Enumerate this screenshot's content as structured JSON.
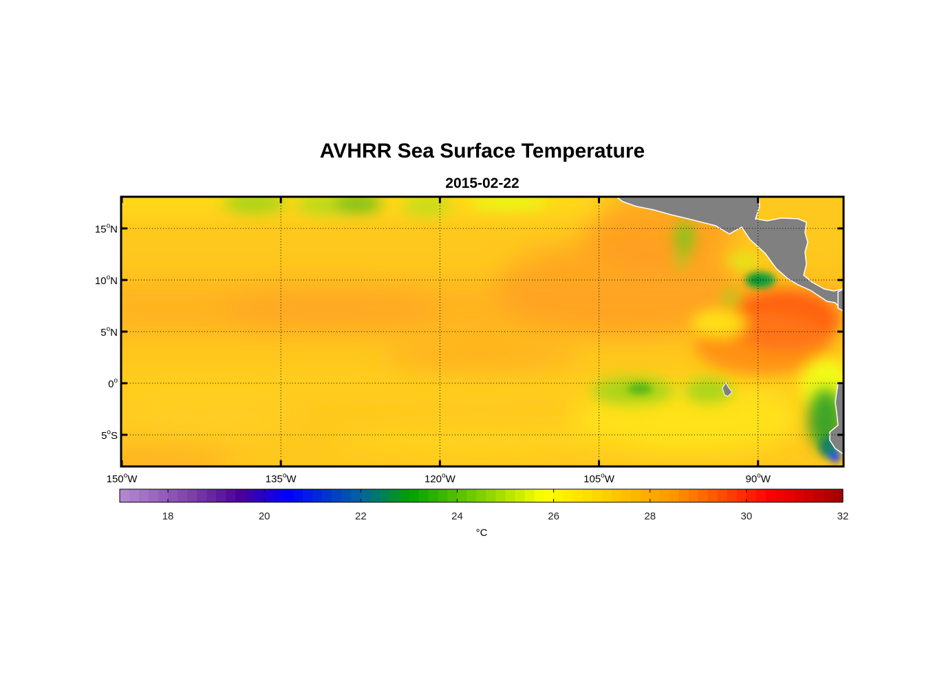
{
  "title": "AVHRR Sea Surface Temperature",
  "subtitle": "2015-02-22",
  "map": {
    "region": "Eastern tropical Pacific",
    "lon_range": [
      -150,
      -82
    ],
    "lat_range": [
      -8,
      18
    ],
    "lat_ticks": [
      {
        "value": 15,
        "num": "15",
        "hemi": "N"
      },
      {
        "value": 10,
        "num": "10",
        "hemi": "N"
      },
      {
        "value": 5,
        "num": "5",
        "hemi": "N"
      },
      {
        "value": 0,
        "num": "0",
        "hemi": ""
      },
      {
        "value": -5,
        "num": "5",
        "hemi": "S"
      }
    ],
    "lon_ticks": [
      {
        "value": -150,
        "num": "150",
        "hemi": "W"
      },
      {
        "value": -135,
        "num": "135",
        "hemi": "W"
      },
      {
        "value": -120,
        "num": "120",
        "hemi": "W"
      },
      {
        "value": -105,
        "num": "105",
        "hemi": "W"
      },
      {
        "value": -90,
        "num": "90",
        "hemi": "W"
      }
    ],
    "grid": "dotted",
    "land_color": "#808080",
    "features": [
      {
        "name": "warm-pool-panama-bight",
        "lon": -86,
        "lat": 7,
        "sst": 30
      },
      {
        "name": "cool-patch-papagayo",
        "lon": -88.5,
        "lat": 10,
        "sst": 23.5
      },
      {
        "name": "cool-patch-galapagos",
        "lon": -100,
        "lat": -0.5,
        "sst": 24.5
      },
      {
        "name": "cold-upwelling-peru",
        "lon": -82.5,
        "lat": -6.5,
        "sst": 20.5
      }
    ]
  },
  "colorbar": {
    "range": [
      17,
      32
    ],
    "ticks": [
      "18",
      "20",
      "22",
      "24",
      "26",
      "28",
      "30",
      "32"
    ],
    "label": "°C",
    "stops": [
      {
        "v": 17,
        "c": "#b48cd2"
      },
      {
        "v": 18.5,
        "c": "#7d3fa8"
      },
      {
        "v": 19.5,
        "c": "#4a0096"
      },
      {
        "v": 20.5,
        "c": "#0000ff"
      },
      {
        "v": 22,
        "c": "#0064a0"
      },
      {
        "v": 23,
        "c": "#00a000"
      },
      {
        "v": 24.5,
        "c": "#7ed000"
      },
      {
        "v": 25.8,
        "c": "#ffff00"
      },
      {
        "v": 27,
        "c": "#ffd200"
      },
      {
        "v": 28.5,
        "c": "#ff9600"
      },
      {
        "v": 30.5,
        "c": "#ff0000"
      },
      {
        "v": 32,
        "c": "#a00000"
      }
    ]
  }
}
